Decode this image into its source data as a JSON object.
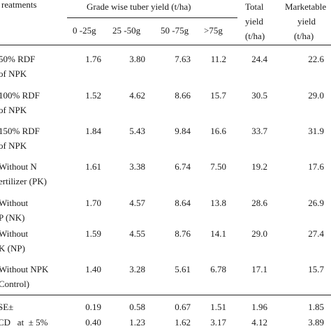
{
  "header": {
    "treatments": "reatments",
    "grade_group": "Grade wise tuber yield (t/ha)",
    "total_line1": "Total",
    "total_line2": "yield",
    "total_line3": "(t/ha)",
    "market_line1": "Marketable",
    "market_line2": "yield",
    "market_line3": "(t/ha)",
    "grades": [
      "0 -25g",
      "25 -50g",
      "50 -75g",
      ">75g"
    ]
  },
  "rows": [
    {
      "t1": "50% RDF",
      "t2": "of NPK",
      "g1": "1.76",
      "g2": "3.80",
      "g3": "7.63",
      "g4": "11.2",
      "total": "24.4",
      "market": "22.6"
    },
    {
      "t1": "100% RDF",
      "t2": "of NPK",
      "g1": "1.52",
      "g2": "4.62",
      "g3": "8.66",
      "g4": "15.7",
      "total": "30.5",
      "market": "29.0"
    },
    {
      "t1": "150% RDF",
      "t2": "of NPK",
      "g1": "1.84",
      "g2": "5.43",
      "g3": "9.84",
      "g4": "16.6",
      "total": "33.7",
      "market": "31.9"
    },
    {
      "t1": "Without N",
      "t2": "ertilizer (PK)",
      "g1": "1.61",
      "g2": "3.38",
      "g3": "6.74",
      "g4": "7.50",
      "total": "19.2",
      "market": "17.6"
    },
    {
      "t1": "Without",
      "t2": "P (NK)",
      "g1": "1.70",
      "g2": "4.57",
      "g3": "8.64",
      "g4": "13.8",
      "total": "28.6",
      "market": "26.9"
    },
    {
      "t1": "Without",
      "t2": "K (NP)",
      "g1": "1.59",
      "g2": "4.55",
      "g3": "8.76",
      "g4": "14.1",
      "total": "29.0",
      "market": "27.4"
    },
    {
      "t1": "Without NPK",
      "t2": "Control)",
      "g1": "1.40",
      "g2": "3.28",
      "g3": "5.61",
      "g4": "6.78",
      "total": "17.1",
      "market": "15.7"
    }
  ],
  "stats": [
    {
      "label": "SE±",
      "g1": "0.19",
      "g2": "0.58",
      "g3": "0.67",
      "g4": "1.51",
      "total": "1.96",
      "market": "1.85"
    },
    {
      "label": "CD   at  ± 5%",
      "g1": "0.40",
      "g2": "1.23",
      "g3": "1.62",
      "g4": "3.17",
      "total": "4.12",
      "market": "3.89"
    }
  ]
}
